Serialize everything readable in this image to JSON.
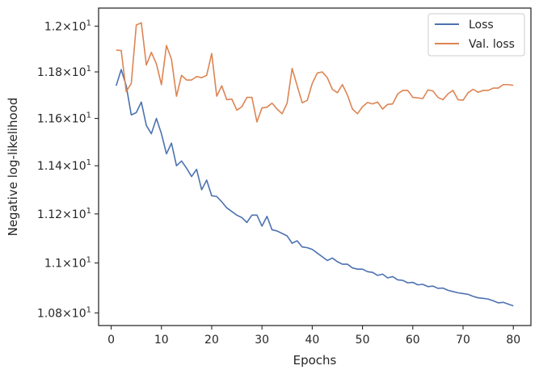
{
  "chart_data": {
    "type": "line",
    "xlabel": "Epochs",
    "ylabel": "Negative log-likelihood",
    "xlim": [
      -2.5,
      83.5
    ],
    "ylim": [
      10.75,
      12.08
    ],
    "y_scale": "log",
    "grid": false,
    "legend_position": "top-right",
    "x_ticks": [
      0,
      10,
      20,
      30,
      40,
      50,
      60,
      70,
      80
    ],
    "y_ticks": [
      {
        "value": 10.8,
        "mant": "1.08",
        "exp": "1"
      },
      {
        "value": 11.0,
        "mant": "1.1",
        "exp": "1"
      },
      {
        "value": 11.2,
        "mant": "1.12",
        "exp": "1"
      },
      {
        "value": 11.4,
        "mant": "1.14",
        "exp": "1"
      },
      {
        "value": 11.6,
        "mant": "1.16",
        "exp": "1"
      },
      {
        "value": 11.8,
        "mant": "1.18",
        "exp": "1"
      },
      {
        "value": 12.0,
        "mant": "1.2",
        "exp": "1"
      }
    ],
    "x": [
      1,
      2,
      3,
      4,
      5,
      6,
      7,
      8,
      9,
      10,
      11,
      12,
      13,
      14,
      15,
      16,
      17,
      18,
      19,
      20,
      21,
      22,
      23,
      24,
      25,
      26,
      27,
      28,
      29,
      30,
      31,
      32,
      33,
      34,
      35,
      36,
      37,
      38,
      39,
      40,
      41,
      42,
      43,
      44,
      45,
      46,
      47,
      48,
      49,
      50,
      51,
      52,
      53,
      54,
      55,
      56,
      57,
      58,
      59,
      60,
      61,
      62,
      63,
      64,
      65,
      66,
      67,
      68,
      69,
      70,
      71,
      72,
      73,
      74,
      75,
      76,
      77,
      78,
      79,
      80
    ],
    "series": [
      {
        "name": "Loss",
        "color": "#4c72b0",
        "values": [
          11.74,
          11.81,
          11.74,
          11.615,
          11.625,
          11.67,
          11.57,
          11.535,
          11.6,
          11.535,
          11.45,
          11.495,
          11.4,
          11.42,
          11.39,
          11.355,
          11.385,
          11.3,
          11.34,
          11.275,
          11.272,
          11.25,
          11.225,
          11.21,
          11.195,
          11.185,
          11.165,
          11.195,
          11.195,
          11.15,
          11.19,
          11.135,
          11.13,
          11.12,
          11.11,
          11.08,
          11.09,
          11.065,
          11.062,
          11.055,
          11.04,
          11.025,
          11.01,
          11.02,
          11.005,
          10.995,
          10.995,
          10.98,
          10.975,
          10.975,
          10.965,
          10.962,
          10.95,
          10.955,
          10.94,
          10.945,
          10.932,
          10.93,
          10.92,
          10.922,
          10.912,
          10.914,
          10.905,
          10.907,
          10.898,
          10.899,
          10.89,
          10.885,
          10.88,
          10.877,
          10.874,
          10.866,
          10.86,
          10.858,
          10.855,
          10.848,
          10.84,
          10.842,
          10.835,
          10.828
        ]
      },
      {
        "name": "Val. loss",
        "color": "#dd8452",
        "values": [
          11.895,
          11.893,
          11.715,
          11.75,
          12.005,
          12.015,
          11.83,
          11.885,
          11.835,
          11.745,
          11.915,
          11.855,
          11.695,
          11.785,
          11.765,
          11.765,
          11.78,
          11.775,
          11.785,
          11.88,
          11.695,
          11.74,
          11.68,
          11.683,
          11.635,
          11.65,
          11.69,
          11.69,
          11.585,
          11.645,
          11.648,
          11.665,
          11.64,
          11.62,
          11.665,
          11.815,
          11.74,
          11.667,
          11.677,
          11.75,
          11.795,
          11.8,
          11.775,
          11.725,
          11.71,
          11.745,
          11.7,
          11.64,
          11.62,
          11.65,
          11.668,
          11.662,
          11.67,
          11.64,
          11.66,
          11.662,
          11.705,
          11.72,
          11.72,
          11.69,
          11.688,
          11.685,
          11.722,
          11.718,
          11.69,
          11.68,
          11.705,
          11.72,
          11.68,
          11.678,
          11.71,
          11.725,
          11.712,
          11.72,
          11.72,
          11.73,
          11.73,
          11.745,
          11.745,
          11.742
        ]
      }
    ]
  }
}
